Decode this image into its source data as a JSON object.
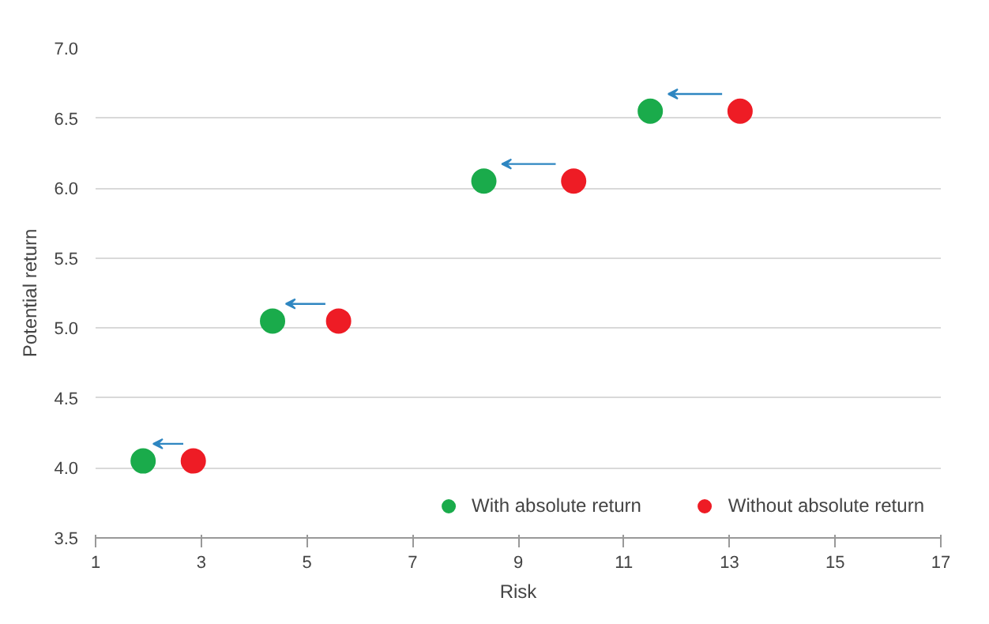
{
  "chart_data": {
    "type": "scatter",
    "xlabel": "Risk",
    "ylabel": "Potential return",
    "xlim": [
      1,
      17
    ],
    "xticks": [
      1,
      3,
      5,
      7,
      9,
      11,
      13,
      15,
      17
    ],
    "ylim": [
      3.5,
      7.0
    ],
    "yticks": [
      {
        "value": 3.5,
        "label": "3.5"
      },
      {
        "value": 4.0,
        "label": "4.0"
      },
      {
        "value": 4.5,
        "label": "4.5"
      },
      {
        "value": 5.0,
        "label": "5.0"
      },
      {
        "value": 5.5,
        "label": "5.5"
      },
      {
        "value": 6.0,
        "label": "6.0"
      },
      {
        "value": 6.5,
        "label": "6.5"
      },
      {
        "value": 7.0,
        "label": "7.0"
      }
    ],
    "grid": "y",
    "legend": "bottom right",
    "marker": "circle",
    "series": [
      {
        "name": "With absolute return",
        "color": "#1aab4b",
        "x": [
          1.9,
          4.35,
          8.35,
          11.5
        ],
        "values": [
          4.05,
          5.05,
          6.05,
          6.55
        ]
      },
      {
        "name": "Without absolute return",
        "color": "#ee1c25",
        "x": [
          2.85,
          5.6,
          10.05,
          13.2
        ],
        "values": [
          4.05,
          5.05,
          6.05,
          6.55
        ]
      }
    ]
  }
}
